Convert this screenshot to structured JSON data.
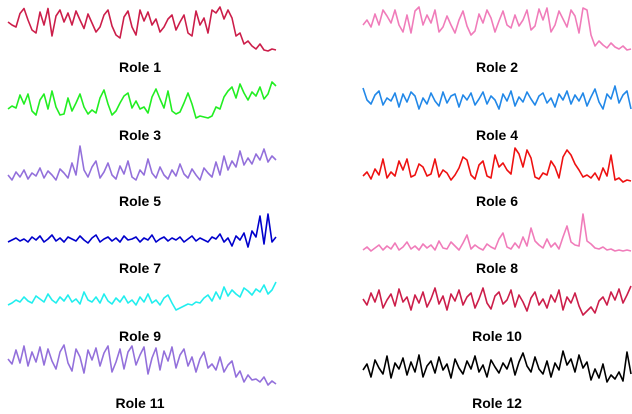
{
  "chart_data": {
    "type": "line",
    "grid": false,
    "axes_visible": false,
    "layout": "6 rows x 2 columns of small multiples",
    "panels": [
      {
        "label": "Role 1",
        "color": "#cc1e4a",
        "values": [
          0.68,
          0.62,
          0.58,
          0.85,
          0.95,
          0.72,
          0.52,
          0.46,
          0.88,
          0.62,
          0.95,
          0.4,
          0.8,
          0.92,
          0.68,
          0.86,
          0.62,
          0.9,
          0.72,
          0.55,
          0.84,
          0.66,
          0.48,
          0.58,
          0.82,
          0.92,
          0.6,
          0.42,
          0.36,
          0.78,
          0.9,
          0.58,
          0.42,
          0.92,
          0.7,
          0.88,
          0.62,
          0.74,
          0.48,
          0.58,
          0.74,
          0.82,
          0.52,
          0.68,
          0.82,
          0.46,
          0.4,
          0.9,
          0.62,
          0.76,
          0.46,
          0.92,
          0.86,
          0.98,
          0.74,
          0.92,
          0.76,
          0.4,
          0.46,
          0.24,
          0.3,
          0.2,
          0.14,
          0.24,
          0.12,
          0.1,
          0.14,
          0.12
        ]
      },
      {
        "label": "Role 2",
        "color": "#f07cba",
        "values": [
          0.62,
          0.72,
          0.58,
          0.84,
          0.62,
          0.92,
          0.8,
          0.66,
          0.92,
          0.62,
          0.48,
          0.82,
          0.46,
          0.9,
          0.98,
          0.62,
          0.82,
          0.66,
          0.92,
          0.48,
          0.58,
          0.8,
          0.62,
          0.46,
          0.72,
          0.9,
          0.6,
          0.42,
          0.5,
          0.84,
          0.66,
          0.92,
          0.76,
          0.48,
          0.7,
          0.9,
          0.62,
          0.56,
          0.82,
          0.6,
          0.72,
          0.92,
          0.52,
          0.6,
          0.94,
          0.72,
          0.96,
          0.48,
          0.62,
          0.9,
          0.74,
          0.58,
          0.92,
          0.8,
          0.46,
          0.96,
          0.92,
          0.42,
          0.2,
          0.3,
          0.22,
          0.16,
          0.26,
          0.18,
          0.14,
          0.2,
          0.12,
          0.14
        ]
      },
      {
        "label": "Role 3",
        "color": "#22ee22",
        "values": [
          0.3,
          0.36,
          0.32,
          0.58,
          0.4,
          0.6,
          0.26,
          0.18,
          0.48,
          0.6,
          0.3,
          0.66,
          0.34,
          0.18,
          0.2,
          0.52,
          0.26,
          0.42,
          0.6,
          0.34,
          0.2,
          0.28,
          0.22,
          0.52,
          0.68,
          0.4,
          0.18,
          0.26,
          0.42,
          0.56,
          0.62,
          0.32,
          0.46,
          0.3,
          0.34,
          0.22,
          0.54,
          0.7,
          0.5,
          0.32,
          0.66,
          0.26,
          0.2,
          0.24,
          0.42,
          0.62,
          0.4,
          0.12,
          0.16,
          0.14,
          0.12,
          0.16,
          0.34,
          0.3,
          0.54,
          0.66,
          0.74,
          0.52,
          0.8,
          0.62,
          0.48,
          0.64,
          0.56,
          0.74,
          0.5,
          0.6,
          0.84,
          0.76
        ]
      },
      {
        "label": "Role 4",
        "color": "#2288e8",
        "values": [
          0.72,
          0.48,
          0.4,
          0.58,
          0.66,
          0.38,
          0.52,
          0.46,
          0.62,
          0.34,
          0.6,
          0.44,
          0.64,
          0.56,
          0.3,
          0.52,
          0.4,
          0.62,
          0.46,
          0.36,
          0.64,
          0.42,
          0.56,
          0.6,
          0.34,
          0.58,
          0.48,
          0.62,
          0.38,
          0.5,
          0.64,
          0.4,
          0.56,
          0.48,
          0.3,
          0.6,
          0.46,
          0.66,
          0.36,
          0.54,
          0.44,
          0.64,
          0.5,
          0.38,
          0.56,
          0.62,
          0.42,
          0.52,
          0.34,
          0.6,
          0.48,
          0.66,
          0.4,
          0.58,
          0.46,
          0.62,
          0.36,
          0.54,
          0.7,
          0.44,
          0.3,
          0.6,
          0.5,
          0.76,
          0.42,
          0.58,
          0.66,
          0.3
        ]
      },
      {
        "label": "Role 5",
        "color": "#9370db",
        "values": [
          0.3,
          0.2,
          0.36,
          0.26,
          0.4,
          0.22,
          0.34,
          0.28,
          0.44,
          0.24,
          0.38,
          0.3,
          0.2,
          0.42,
          0.34,
          0.24,
          0.54,
          0.3,
          0.88,
          0.4,
          0.26,
          0.46,
          0.58,
          0.24,
          0.36,
          0.54,
          0.3,
          0.22,
          0.48,
          0.32,
          0.58,
          0.26,
          0.2,
          0.4,
          0.3,
          0.62,
          0.34,
          0.24,
          0.46,
          0.3,
          0.22,
          0.4,
          0.28,
          0.52,
          0.32,
          0.24,
          0.42,
          0.3,
          0.2,
          0.44,
          0.34,
          0.26,
          0.56,
          0.3,
          0.68,
          0.4,
          0.58,
          0.46,
          0.78,
          0.5,
          0.64,
          0.52,
          0.72,
          0.6,
          0.82,
          0.56,
          0.68,
          0.6
        ]
      },
      {
        "label": "Role 6",
        "color": "#ee1111",
        "values": [
          0.28,
          0.36,
          0.22,
          0.42,
          0.3,
          0.62,
          0.24,
          0.36,
          0.28,
          0.58,
          0.4,
          0.62,
          0.26,
          0.3,
          0.52,
          0.46,
          0.28,
          0.32,
          0.62,
          0.26,
          0.4,
          0.34,
          0.2,
          0.3,
          0.44,
          0.66,
          0.6,
          0.3,
          0.22,
          0.5,
          0.58,
          0.28,
          0.24,
          0.7,
          0.46,
          0.54,
          0.4,
          0.32,
          0.84,
          0.72,
          0.46,
          0.8,
          0.64,
          0.26,
          0.22,
          0.34,
          0.3,
          0.58,
          0.46,
          0.24,
          0.66,
          0.8,
          0.7,
          0.52,
          0.4,
          0.26,
          0.3,
          0.24,
          0.34,
          0.2,
          0.44,
          0.28,
          0.7,
          0.2,
          0.24,
          0.16,
          0.2,
          0.18
        ]
      },
      {
        "label": "Role 7",
        "color": "#0000cc",
        "values": [
          0.3,
          0.34,
          0.38,
          0.32,
          0.36,
          0.3,
          0.4,
          0.34,
          0.42,
          0.3,
          0.36,
          0.44,
          0.32,
          0.38,
          0.3,
          0.4,
          0.36,
          0.32,
          0.42,
          0.34,
          0.28,
          0.38,
          0.44,
          0.3,
          0.36,
          0.4,
          0.32,
          0.38,
          0.3,
          0.42,
          0.34,
          0.36,
          0.4,
          0.3,
          0.38,
          0.34,
          0.44,
          0.3,
          0.36,
          0.4,
          0.32,
          0.38,
          0.34,
          0.4,
          0.3,
          0.36,
          0.42,
          0.32,
          0.38,
          0.34,
          0.3,
          0.4,
          0.36,
          0.46,
          0.3,
          0.38,
          0.22,
          0.42,
          0.34,
          0.48,
          0.2,
          0.52,
          0.4,
          0.82,
          0.26,
          0.86,
          0.3,
          0.4
        ]
      },
      {
        "label": "Role 8",
        "color": "#f07cba",
        "values": [
          0.14,
          0.2,
          0.12,
          0.18,
          0.24,
          0.14,
          0.22,
          0.16,
          0.28,
          0.14,
          0.2,
          0.3,
          0.16,
          0.22,
          0.14,
          0.26,
          0.18,
          0.24,
          0.14,
          0.32,
          0.18,
          0.16,
          0.3,
          0.22,
          0.14,
          0.28,
          0.44,
          0.16,
          0.24,
          0.18,
          0.14,
          0.26,
          0.2,
          0.16,
          0.36,
          0.48,
          0.2,
          0.16,
          0.28,
          0.18,
          0.4,
          0.22,
          0.58,
          0.32,
          0.24,
          0.18,
          0.36,
          0.2,
          0.28,
          0.16,
          0.4,
          0.62,
          0.3,
          0.24,
          0.22,
          0.86,
          0.32,
          0.26,
          0.18,
          0.16,
          0.2,
          0.14,
          0.16,
          0.12,
          0.14,
          0.12,
          0.14,
          0.12
        ]
      },
      {
        "label": "Role 9",
        "color": "#22eeee",
        "values": [
          0.4,
          0.44,
          0.5,
          0.46,
          0.56,
          0.48,
          0.44,
          0.58,
          0.52,
          0.46,
          0.62,
          0.5,
          0.44,
          0.56,
          0.48,
          0.6,
          0.46,
          0.52,
          0.42,
          0.66,
          0.5,
          0.46,
          0.56,
          0.44,
          0.62,
          0.48,
          0.42,
          0.54,
          0.46,
          0.58,
          0.44,
          0.5,
          0.4,
          0.56,
          0.46,
          0.62,
          0.44,
          0.5,
          0.4,
          0.54,
          0.6,
          0.44,
          0.3,
          0.34,
          0.38,
          0.42,
          0.4,
          0.46,
          0.44,
          0.54,
          0.6,
          0.48,
          0.66,
          0.52,
          0.76,
          0.58,
          0.7,
          0.62,
          0.56,
          0.74,
          0.68,
          0.6,
          0.72,
          0.66,
          0.8,
          0.62,
          0.7,
          0.86
        ]
      },
      {
        "label": "Role 10",
        "color": "#cc1e4a",
        "values": [
          0.52,
          0.4,
          0.64,
          0.46,
          0.7,
          0.34,
          0.5,
          0.62,
          0.38,
          0.72,
          0.46,
          0.56,
          0.3,
          0.6,
          0.44,
          0.66,
          0.36,
          0.52,
          0.74,
          0.42,
          0.58,
          0.3,
          0.62,
          0.48,
          0.7,
          0.4,
          0.56,
          0.64,
          0.34,
          0.52,
          0.74,
          0.44,
          0.32,
          0.58,
          0.66,
          0.42,
          0.5,
          0.7,
          0.36,
          0.6,
          0.46,
          0.28,
          0.54,
          0.66,
          0.4,
          0.52,
          0.34,
          0.6,
          0.46,
          0.7,
          0.3,
          0.56,
          0.44,
          0.64,
          0.38,
          0.2,
          0.28,
          0.36,
          0.24,
          0.48,
          0.56,
          0.4,
          0.66,
          0.5,
          0.72,
          0.44,
          0.6,
          0.78
        ]
      },
      {
        "label": "Role 11",
        "color": "#9370db",
        "values": [
          0.66,
          0.56,
          0.84,
          0.58,
          0.92,
          0.52,
          0.8,
          0.6,
          0.9,
          0.54,
          0.86,
          0.62,
          0.46,
          0.8,
          0.94,
          0.58,
          0.42,
          0.86,
          0.7,
          0.38,
          0.84,
          0.64,
          0.88,
          0.52,
          0.78,
          0.92,
          0.4,
          0.6,
          0.86,
          0.46,
          0.8,
          0.92,
          0.54,
          0.74,
          0.9,
          0.36,
          0.68,
          0.88,
          0.44,
          0.82,
          0.62,
          0.9,
          0.48,
          0.74,
          0.86,
          0.52,
          0.7,
          0.4,
          0.66,
          0.8,
          0.48,
          0.56,
          0.44,
          0.7,
          0.4,
          0.54,
          0.62,
          0.3,
          0.42,
          0.2,
          0.34,
          0.24,
          0.26,
          0.2,
          0.3,
          0.14,
          0.22,
          0.16
        ]
      },
      {
        "label": "Role 12",
        "color": "#000000",
        "values": [
          0.44,
          0.56,
          0.3,
          0.64,
          0.48,
          0.36,
          0.72,
          0.28,
          0.58,
          0.46,
          0.68,
          0.34,
          0.6,
          0.4,
          0.74,
          0.3,
          0.52,
          0.62,
          0.38,
          0.7,
          0.44,
          0.56,
          0.28,
          0.66,
          0.48,
          0.36,
          0.62,
          0.46,
          0.72,
          0.4,
          0.54,
          0.3,
          0.64,
          0.5,
          0.38,
          0.58,
          0.46,
          0.68,
          0.34,
          0.6,
          0.78,
          0.52,
          0.4,
          0.7,
          0.46,
          0.36,
          0.62,
          0.3,
          0.58,
          0.44,
          0.82,
          0.54,
          0.66,
          0.4,
          0.74,
          0.48,
          0.6,
          0.24,
          0.46,
          0.28,
          0.56,
          0.2,
          0.34,
          0.26,
          0.4,
          0.22,
          0.8,
          0.36
        ]
      }
    ]
  }
}
